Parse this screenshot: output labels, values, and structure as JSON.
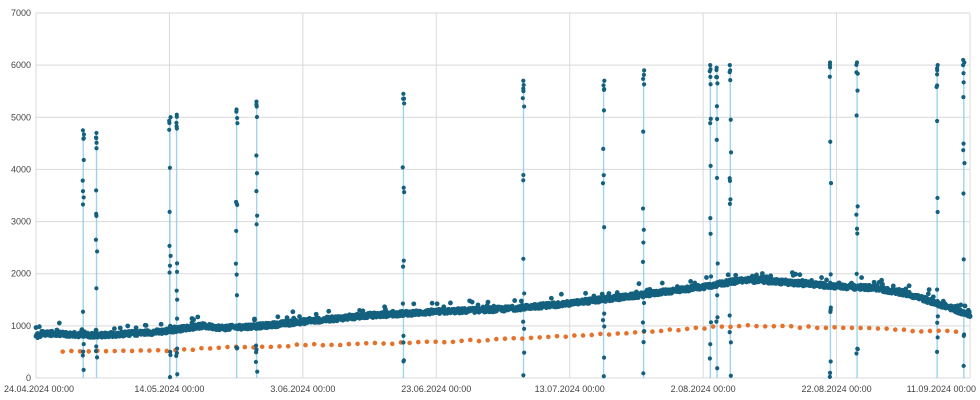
{
  "chart_data": {
    "type": "scatter",
    "title": "",
    "xlabel": "",
    "ylabel": "",
    "ylim": [
      0,
      7000
    ],
    "yticks": [
      0,
      1000,
      2000,
      3000,
      4000,
      5000,
      6000,
      7000
    ],
    "xlim": [
      "2024-04-24",
      "2024-09-11"
    ],
    "xticks": [
      "24.04.2024 00:00",
      "14.05.2024 00:00",
      "3.06.2024 00:00",
      "23.06.2024 00:00",
      "13.07.2024 00:00",
      "2.08.2024 00:00",
      "22.08.2024 00:00",
      "11.09.2024 00:00"
    ],
    "grid": true,
    "legend": "none",
    "colors": {
      "dark_series": "#14607f",
      "orange_series": "#e6712a",
      "spike_line": "#7fc6e6",
      "grid": "#d9d9d9"
    },
    "series": [
      {
        "role": "dark-blue",
        "baseline": [
          [
            "2024-04-24",
            800
          ],
          [
            "2024-04-25",
            860
          ],
          [
            "2024-04-28",
            840
          ],
          [
            "2024-05-03",
            820
          ],
          [
            "2024-05-08",
            850
          ],
          [
            "2024-05-13",
            890
          ],
          [
            "2024-05-16",
            950
          ],
          [
            "2024-05-19",
            1000
          ],
          [
            "2024-05-22",
            960
          ],
          [
            "2024-05-28",
            1000
          ],
          [
            "2024-06-03",
            1080
          ],
          [
            "2024-06-13",
            1200
          ],
          [
            "2024-06-23",
            1270
          ],
          [
            "2024-07-03",
            1320
          ],
          [
            "2024-07-13",
            1430
          ],
          [
            "2024-07-23",
            1580
          ],
          [
            "2024-08-02",
            1750
          ],
          [
            "2024-08-08",
            1880
          ],
          [
            "2024-08-12",
            1860
          ],
          [
            "2024-08-22",
            1760
          ],
          [
            "2024-08-28",
            1720
          ],
          [
            "2024-09-02",
            1600
          ],
          [
            "2024-09-08",
            1350
          ],
          [
            "2024-09-11",
            1200
          ]
        ],
        "spikes": [
          {
            "date": "2024-05-01",
            "max": 4750
          },
          {
            "date": "2024-05-03",
            "max": 4700
          },
          {
            "date": "2024-05-14",
            "max": 5000
          },
          {
            "date": "2024-05-15",
            "max": 5050
          },
          {
            "date": "2024-05-24",
            "max": 5150
          },
          {
            "date": "2024-05-27",
            "max": 5300
          },
          {
            "date": "2024-06-18",
            "max": 5450
          },
          {
            "date": "2024-07-06",
            "max": 5700
          },
          {
            "date": "2024-07-18",
            "max": 5700
          },
          {
            "date": "2024-07-24",
            "max": 5900
          },
          {
            "date": "2024-08-03",
            "max": 6000
          },
          {
            "date": "2024-08-04",
            "max": 5950
          },
          {
            "date": "2024-08-06",
            "max": 6000
          },
          {
            "date": "2024-08-21",
            "max": 6050
          },
          {
            "date": "2024-08-25",
            "max": 6050
          },
          {
            "date": "2024-09-06",
            "max": 6000
          },
          {
            "date": "2024-09-10",
            "max": 6100
          }
        ]
      },
      {
        "role": "orange",
        "points": [
          [
            "2024-04-28",
            520
          ],
          [
            "2024-05-06",
            510
          ],
          [
            "2024-05-14",
            530
          ],
          [
            "2024-05-24",
            590
          ],
          [
            "2024-06-03",
            630
          ],
          [
            "2024-06-13",
            660
          ],
          [
            "2024-06-23",
            690
          ],
          [
            "2024-07-03",
            740
          ],
          [
            "2024-07-13",
            800
          ],
          [
            "2024-07-23",
            880
          ],
          [
            "2024-08-02",
            960
          ],
          [
            "2024-08-08",
            1010
          ],
          [
            "2024-08-16",
            980
          ],
          [
            "2024-08-26",
            960
          ],
          [
            "2024-09-03",
            900
          ],
          [
            "2024-09-10",
            900
          ]
        ]
      }
    ]
  }
}
